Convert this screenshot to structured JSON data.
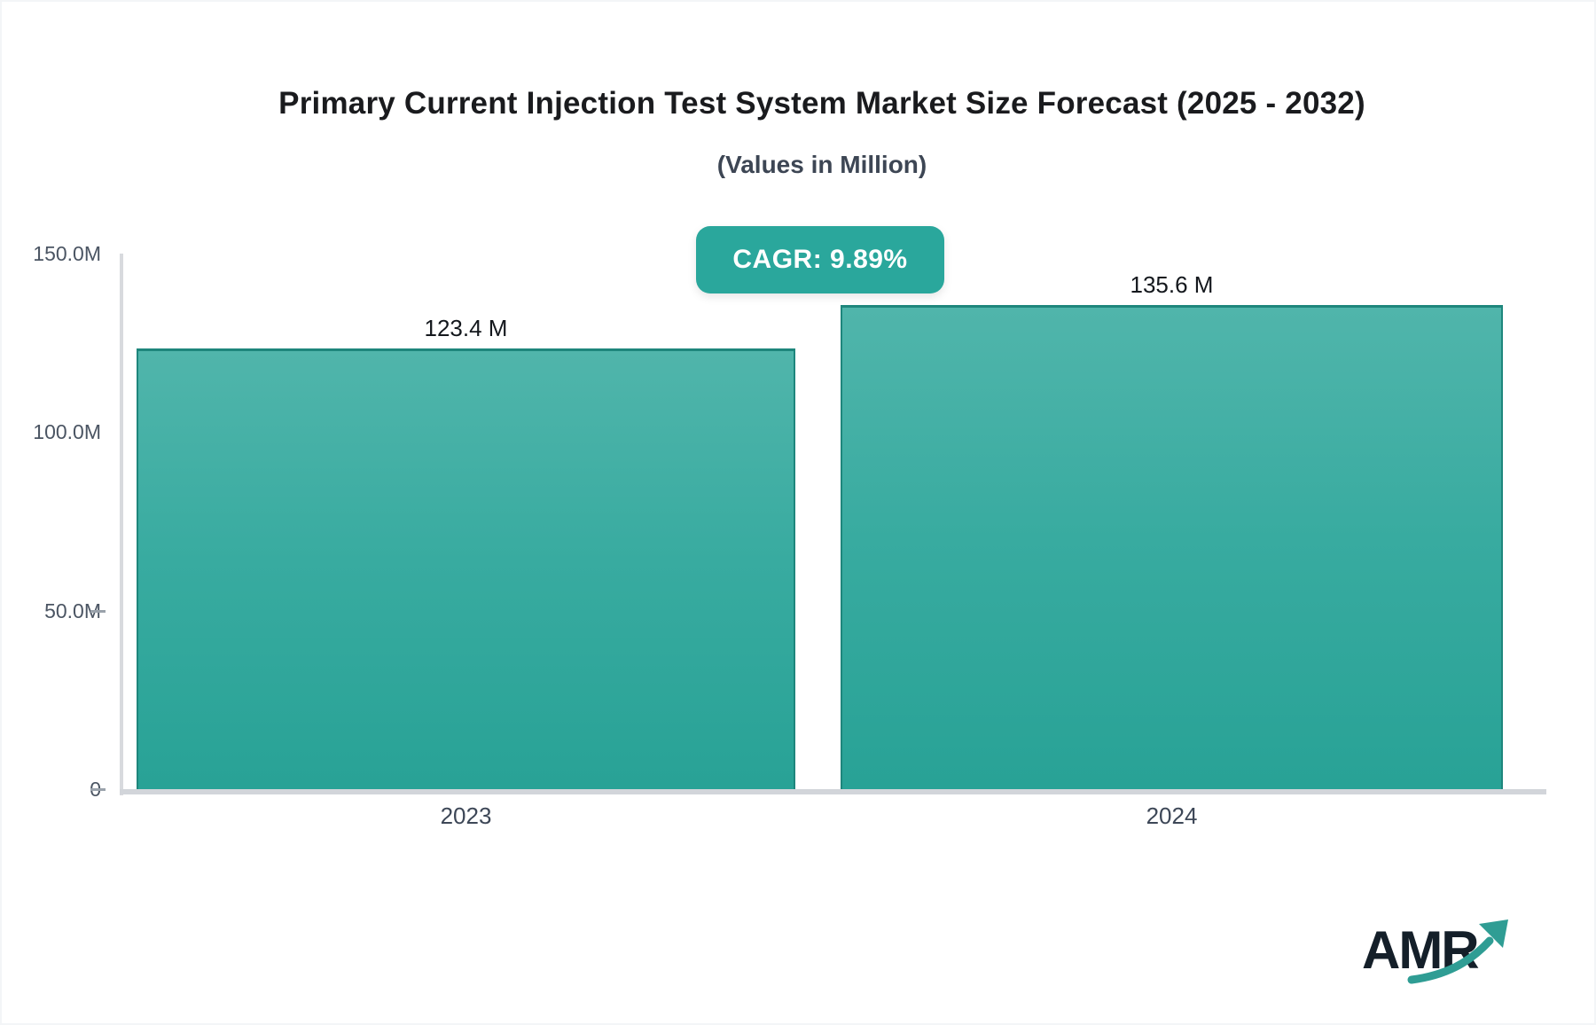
{
  "chart_data": {
    "type": "bar",
    "title": "Primary Current Injection Test System Market Size Forecast (2025 - 2032)",
    "subtitle": "(Values in Million)",
    "cagr_label": "CAGR: 9.89%",
    "categories": [
      "2023",
      "2024"
    ],
    "values": [
      123.4,
      135.6
    ],
    "value_labels": [
      "123.4 M",
      "135.6 M"
    ],
    "unit": "Million",
    "ylim": [
      0,
      150
    ],
    "yticks": [
      {
        "label": "150.0M",
        "value": 150,
        "dash": false
      },
      {
        "label": "100.0M",
        "value": 100,
        "dash": false
      },
      {
        "label": "50.0M",
        "value": 50,
        "dash": true
      },
      {
        "label": "0",
        "value": 0,
        "dash": true
      }
    ],
    "grid": false,
    "legend": false
  },
  "colors": {
    "bar_fill_top": "#50b5ab",
    "bar_fill_bottom": "#28a296",
    "bar_border": "#1e867c",
    "badge_bg": "#2aa79c",
    "badge_text": "#ffffff",
    "axis_line": "#d2d5da",
    "title_text": "#1a1b1e",
    "axis_text": "#4b5563",
    "logo_text": "#141f29",
    "logo_arrow": "#2f9d94"
  },
  "logo": {
    "text": "AMR"
  }
}
